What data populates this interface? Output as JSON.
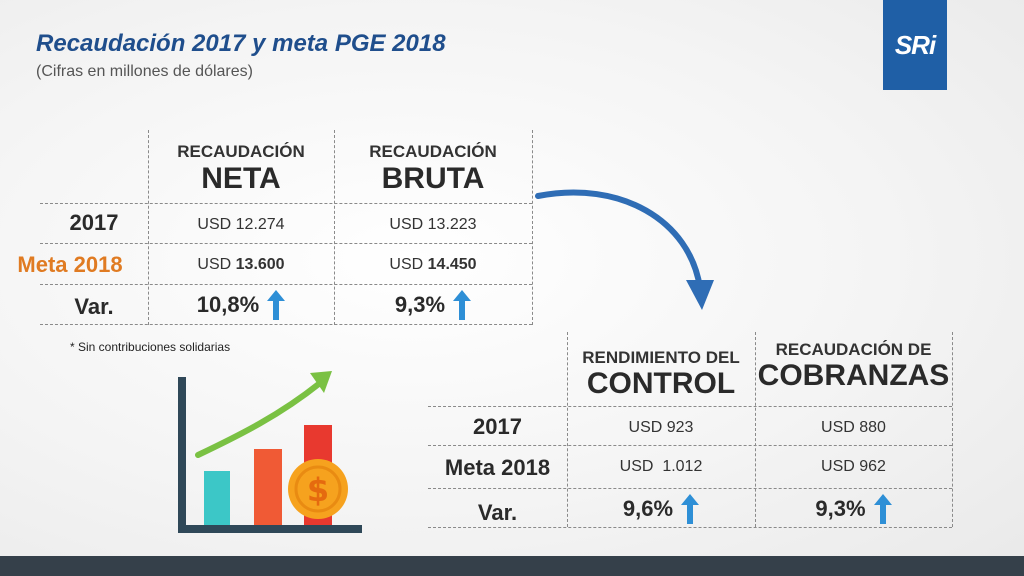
{
  "header": {
    "title": "Recaudación 2017 y meta PGE 2018",
    "subtitle": "(Cifras en millones de dólares)",
    "logo_text": "SRi"
  },
  "table1": {
    "columns": [
      {
        "small": "RECAUDACIÓN",
        "big": "NETA"
      },
      {
        "small": "RECAUDACIÓN",
        "big": "BRUTA"
      }
    ],
    "rows": [
      {
        "label": "2017",
        "prefix1": "USD ",
        "value1": "12.274",
        "prefix2": "USD ",
        "value2": "13.223"
      },
      {
        "label": "Meta 2018",
        "prefix1": "USD ",
        "value1": "13.600",
        "prefix2": "USD ",
        "value2": "14.450"
      }
    ],
    "var": {
      "label": "Var.",
      "value1": "10,8%",
      "value2": "9,3%"
    },
    "note": "* Sin contribuciones solidarias"
  },
  "table2": {
    "columns": [
      {
        "small": "RENDIMIENTO DEL",
        "big": "CONTROL"
      },
      {
        "small": "RECAUDACIÓN DE",
        "big": "COBRANZAS"
      }
    ],
    "rows": [
      {
        "label": "2017",
        "value1": "USD 923",
        "value2": "USD 880"
      },
      {
        "label": "Meta 2018",
        "value1": "USD  1.012",
        "value2": "USD 962"
      }
    ],
    "var": {
      "label": "Var.",
      "value1": "9,6%",
      "value2": "9,3%"
    }
  },
  "illustration": {
    "icon": "growth-chart-dollar-icon",
    "coin_symbol": "$"
  },
  "colors": {
    "title": "#1f4e8c",
    "logo_bg": "#1f5fa6",
    "orange": "#e07b22",
    "arrow_blue": "#2f6db5",
    "up_arrow": "#2e8fd6",
    "bottom_bar": "#35404a"
  }
}
